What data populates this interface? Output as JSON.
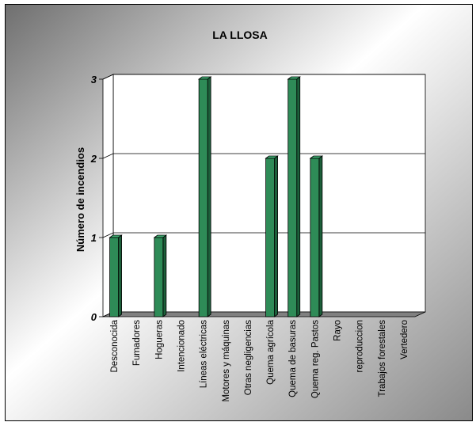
{
  "chart_data": {
    "type": "bar",
    "title": "LA LLOSA",
    "ylabel": "Número de incendios",
    "xlabel": "",
    "categories": [
      "Desconocida",
      "Fumadores",
      "Hogueras",
      "Intencionado",
      "Líneas eléctricas",
      "Motores y máquinas",
      "Otras negligencias",
      "Quema agrícola",
      "Quema de basuras",
      "Quema reg. Pastos",
      "Rayo",
      "reproduccion",
      "Trabajos forestales",
      "Vertedero"
    ],
    "values": [
      1,
      0,
      1,
      0,
      3,
      0,
      0,
      2,
      3,
      2,
      0,
      0,
      0,
      0
    ],
    "ylim": [
      0,
      3
    ],
    "yticks": [
      0,
      1,
      2,
      3
    ],
    "grid": true,
    "legend": "none",
    "colors": {
      "bar": "#2e8b57",
      "bar_side": "#1c5f3a",
      "bar_top": "#3fae72",
      "floor": "#808080"
    }
  }
}
